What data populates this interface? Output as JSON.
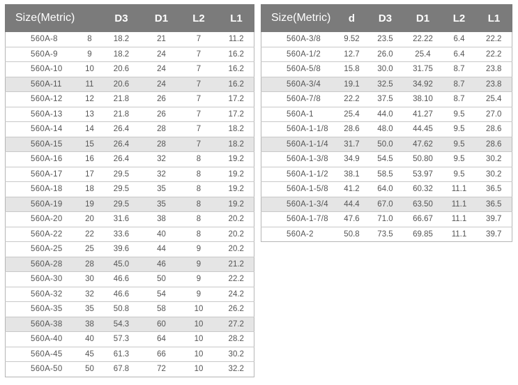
{
  "metric_table": {
    "headers": [
      "Size(Metric)",
      "",
      "D3",
      "D1",
      "L2",
      "L1"
    ],
    "rows": [
      [
        "560A-8",
        "8",
        "18.2",
        "21",
        "7",
        "11.2"
      ],
      [
        "560A-9",
        "9",
        "18.2",
        "24",
        "7",
        "16.2"
      ],
      [
        "560A-10",
        "10",
        "20.6",
        "24",
        "7",
        "16.2"
      ],
      [
        "560A-11",
        "11",
        "20.6",
        "24",
        "7",
        "16.2"
      ],
      [
        "560A-12",
        "12",
        "21.8",
        "26",
        "7",
        "17.2"
      ],
      [
        "560A-13",
        "13",
        "21.8",
        "26",
        "7",
        "17.2"
      ],
      [
        "560A-14",
        "14",
        "26.4",
        "28",
        "7",
        "18.2"
      ],
      [
        "560A-15",
        "15",
        "26.4",
        "28",
        "7",
        "18.2"
      ],
      [
        "560A-16",
        "16",
        "26.4",
        "32",
        "8",
        "19.2"
      ],
      [
        "560A-17",
        "17",
        "29.5",
        "32",
        "8",
        "19.2"
      ],
      [
        "560A-18",
        "18",
        "29.5",
        "35",
        "8",
        "19.2"
      ],
      [
        "560A-19",
        "19",
        "29.5",
        "35",
        "8",
        "19.2"
      ],
      [
        "560A-20",
        "20",
        "31.6",
        "38",
        "8",
        "20.2"
      ],
      [
        "560A-22",
        "22",
        "33.6",
        "40",
        "8",
        "20.2"
      ],
      [
        "560A-25",
        "25",
        "39.6",
        "44",
        "9",
        "20.2"
      ],
      [
        "560A-28",
        "28",
        "45.0",
        "46",
        "9",
        "21.2"
      ],
      [
        "560A-30",
        "30",
        "46.6",
        "50",
        "9",
        "22.2"
      ],
      [
        "560A-32",
        "32",
        "46.6",
        "54",
        "9",
        "24.2"
      ],
      [
        "560A-35",
        "35",
        "50.8",
        "58",
        "10",
        "26.2"
      ],
      [
        "560A-38",
        "38",
        "54.3",
        "60",
        "10",
        "27.2"
      ],
      [
        "560A-40",
        "40",
        "57.3",
        "64",
        "10",
        "28.2"
      ],
      [
        "560A-45",
        "45",
        "61.3",
        "66",
        "10",
        "30.2"
      ],
      [
        "560A-50",
        "50",
        "67.8",
        "72",
        "10",
        "32.2"
      ]
    ]
  },
  "inch_table": {
    "headers": [
      "Size(Metric)",
      "d",
      "D3",
      "D1",
      "L2",
      "L1"
    ],
    "rows": [
      [
        "560A-3/8",
        "9.52",
        "23.5",
        "22.22",
        "6.4",
        "22.2"
      ],
      [
        "560A-1/2",
        "12.7",
        "26.0",
        "25.4",
        "6.4",
        "22.2"
      ],
      [
        "560A-5/8",
        "15.8",
        "30.0",
        "31.75",
        "8.7",
        "23.8"
      ],
      [
        "560A-3/4",
        "19.1",
        "32.5",
        "34.92",
        "8.7",
        "23.8"
      ],
      [
        "560A-7/8",
        "22.2",
        "37.5",
        "38.10",
        "8.7",
        "25.4"
      ],
      [
        "560A-1",
        "25.4",
        "44.0",
        "41.27",
        "9.5",
        "27.0"
      ],
      [
        "560A-1-1/8",
        "28.6",
        "48.0",
        "44.45",
        "9.5",
        "28.6"
      ],
      [
        "560A-1-1/4",
        "31.7",
        "50.0",
        "47.62",
        "9.5",
        "28.6"
      ],
      [
        "560A-1-3/8",
        "34.9",
        "54.5",
        "50.80",
        "9.5",
        "30.2"
      ],
      [
        "560A-1-1/2",
        "38.1",
        "58.5",
        "53.97",
        "9.5",
        "30.2"
      ],
      [
        "560A-1-5/8",
        "41.2",
        "64.0",
        "60.32",
        "11.1",
        "36.5"
      ],
      [
        "560A-1-3/4",
        "44.4",
        "67.0",
        "63.50",
        "11.1",
        "36.5"
      ],
      [
        "560A-1-7/8",
        "47.6",
        "71.0",
        "66.67",
        "11.1",
        "39.7"
      ],
      [
        "560A-2",
        "50.8",
        "73.5",
        "69.85",
        "11.1",
        "39.7"
      ]
    ]
  }
}
